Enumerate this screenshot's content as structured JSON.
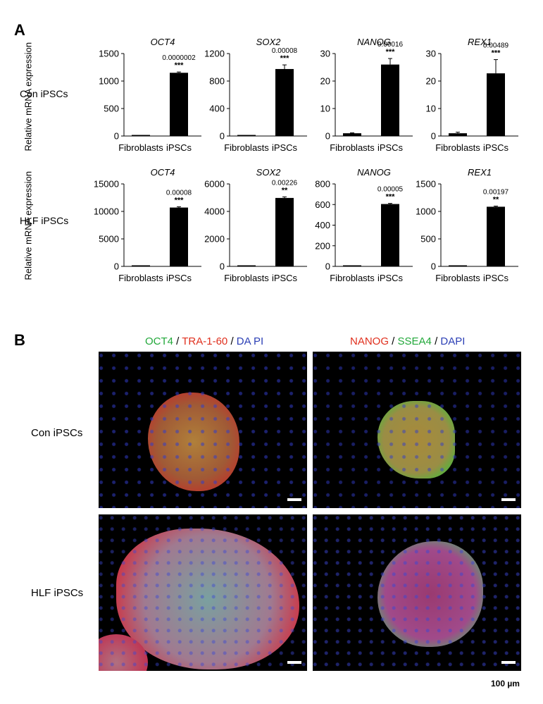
{
  "panel_a_label": "A",
  "panel_b_label": "B",
  "rows": {
    "con": "Con iPSCs",
    "hlf": "HLF iPSCs"
  },
  "ylabel": "Relative mRNA expression",
  "chart_data": [
    {
      "type": "bar",
      "row": "Con iPSCs",
      "title": "OCT4",
      "categories": [
        "Fibroblasts",
        "iPSCs"
      ],
      "values": [
        1,
        1150
      ],
      "errors": [
        0,
        15
      ],
      "ylim": [
        0,
        1500
      ],
      "yticks": [
        0,
        500,
        1000,
        1500
      ],
      "pvalue": "0.0000002",
      "stars": "***"
    },
    {
      "type": "bar",
      "row": "Con iPSCs",
      "title": "SOX2",
      "categories": [
        "Fibroblasts",
        "iPSCs"
      ],
      "values": [
        1,
        975
      ],
      "errors": [
        0,
        60
      ],
      "ylim": [
        0,
        1200
      ],
      "yticks": [
        0,
        400,
        800,
        1200
      ],
      "pvalue": "0.00008",
      "stars": "***"
    },
    {
      "type": "bar",
      "row": "Con iPSCs",
      "title": "NANOG",
      "categories": [
        "Fibroblasts",
        "iPSCs"
      ],
      "values": [
        1,
        26
      ],
      "errors": [
        0.15,
        2.2
      ],
      "ylim": [
        0,
        30
      ],
      "yticks": [
        0,
        10,
        20,
        30
      ],
      "pvalue": "0.00016",
      "stars": "***"
    },
    {
      "type": "bar",
      "row": "Con iPSCs",
      "title": "REX1",
      "categories": [
        "Fibroblasts",
        "iPSCs"
      ],
      "values": [
        1,
        22.8
      ],
      "errors": [
        0.4,
        5
      ],
      "ylim": [
        0,
        30
      ],
      "yticks": [
        0,
        10,
        20,
        30
      ],
      "pvalue": "0.00489",
      "stars": "***"
    },
    {
      "type": "bar",
      "row": "HLF iPSCs",
      "title": "OCT4",
      "categories": [
        "Fibroblasts",
        "iPSCs"
      ],
      "values": [
        1,
        10700
      ],
      "errors": [
        0,
        150
      ],
      "ylim": [
        0,
        15000
      ],
      "yticks": [
        0,
        5000,
        10000,
        15000
      ],
      "pvalue": "0.00008",
      "stars": "***"
    },
    {
      "type": "bar",
      "row": "HLF iPSCs",
      "title": "SOX2",
      "categories": [
        "Fibroblasts",
        "iPSCs"
      ],
      "values": [
        1,
        4980
      ],
      "errors": [
        0,
        80
      ],
      "ylim": [
        0,
        6000
      ],
      "yticks": [
        0,
        2000,
        4000,
        6000
      ],
      "pvalue": "0.00226",
      "stars": "**"
    },
    {
      "type": "bar",
      "row": "HLF iPSCs",
      "title": "NANOG",
      "categories": [
        "Fibroblasts",
        "iPSCs"
      ],
      "values": [
        1,
        605
      ],
      "errors": [
        0,
        6
      ],
      "ylim": [
        0,
        800
      ],
      "yticks": [
        0,
        200,
        400,
        600,
        800
      ],
      "pvalue": "0.00005",
      "stars": "***"
    },
    {
      "type": "bar",
      "row": "HLF iPSCs",
      "title": "REX1",
      "categories": [
        "Fibroblasts",
        "iPSCs"
      ],
      "values": [
        1,
        1085
      ],
      "errors": [
        0,
        12
      ],
      "ylim": [
        0,
        1500
      ],
      "yticks": [
        0,
        500,
        1000,
        1500
      ],
      "pvalue": "0.00197",
      "stars": "**"
    }
  ],
  "stain_left": [
    {
      "text": "OCT4",
      "color": "#22a83a"
    },
    {
      "text": " / ",
      "color": "#000000"
    },
    {
      "text": "TRA-1-60",
      "color": "#e0301e"
    },
    {
      "text": " / ",
      "color": "#000000"
    },
    {
      "text": "DA PI",
      "color": "#2b3fb5"
    }
  ],
  "stain_right": [
    {
      "text": "NANOG",
      "color": "#e0301e"
    },
    {
      "text": " / ",
      "color": "#000000"
    },
    {
      "text": "SSEA4",
      "color": "#22a83a"
    },
    {
      "text": " / ",
      "color": "#000000"
    },
    {
      "text": "DAPI",
      "color": "#2b3fb5"
    }
  ],
  "scale_bar": "100 µm"
}
